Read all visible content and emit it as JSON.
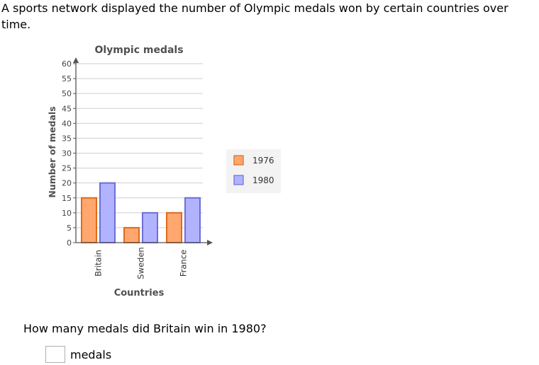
{
  "intro": "A sports network displayed the number of Olympic medals won by certain countries over time.",
  "question": "How many medals did Britain win in 1980?",
  "answer": {
    "value": "",
    "unit": "medals"
  },
  "chart_data": {
    "type": "bar",
    "title": "Olympic medals",
    "xlabel": "Countries",
    "ylabel": "Number of medals",
    "categories": [
      "Britain",
      "Sweden",
      "France"
    ],
    "series": [
      {
        "name": "1976",
        "values": [
          15,
          5,
          10
        ],
        "color": "#ffa76e"
      },
      {
        "name": "1980",
        "values": [
          20,
          10,
          15
        ],
        "color": "#b1b3ff"
      }
    ],
    "ylim": [
      0,
      60
    ],
    "yticks": [
      0,
      5,
      10,
      15,
      20,
      25,
      30,
      35,
      40,
      45,
      50,
      55,
      60
    ],
    "grid": true,
    "legend": "right"
  }
}
